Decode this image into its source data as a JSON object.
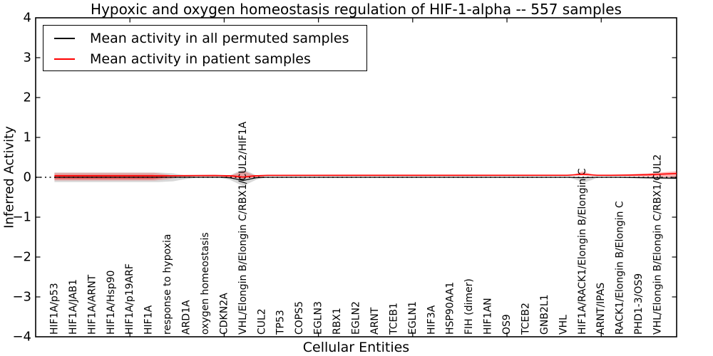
{
  "chart_data": {
    "type": "line",
    "title": "Hypoxic and oxygen homeostasis regulation of HIF-1-alpha -- 557 samples",
    "xlabel": "Cellular Entities",
    "ylabel": "Inferred Activity",
    "ylim": [
      -4,
      4
    ],
    "y_ticks": [
      4,
      3,
      2,
      1,
      0,
      -1,
      -2,
      -3,
      -4
    ],
    "x_tick_positions": [
      5,
      10,
      15,
      20,
      25,
      30
    ],
    "grid": false,
    "zero_line": {
      "style": "dotted",
      "color": "#000000"
    },
    "frame_color": "#000000",
    "background": "#ffffff",
    "categories": [
      "HIF1A/p53",
      "HIF1A/JAB1",
      "HIF1A/ARNT",
      "HIF1A/Hsp90",
      "HIF1A/p19ARF",
      "HIF1A",
      "response to hypoxia",
      "ARD1A",
      "oxygen homeostasis",
      "CDKN2A",
      "VHL/Elongin B/Elongin C/RBX1/CUL2/HIF1A",
      "CUL2",
      "TP53",
      "COPS5",
      "EGLN3",
      "RBX1",
      "EGLN2",
      "ARNT",
      "TCEB1",
      "EGLN1",
      "HIF3A",
      "HSP90AA1",
      "FIH (dimer)",
      "HIF1AN",
      "OS9",
      "TCEB2",
      "GNB2L1",
      "VHL",
      "HIF1A/RACK1/Elongin B/Elongin C",
      "ARNT/IPAS",
      "RACK1/Elongin B/Elongin C",
      "PHD1-3/OS9",
      "VHL/Elongin B/Elongin C/RBX1/CUL2"
    ],
    "legend": {
      "position": "upper left",
      "entries": [
        {
          "label": "Mean activity in all permuted samples",
          "color": "#000000"
        },
        {
          "label": "Mean activity in patient samples",
          "color": "#ff0000"
        }
      ]
    },
    "series": [
      {
        "name": "Mean activity in all permuted samples",
        "color": "#000000",
        "width": 1.3,
        "x": [
          1,
          9.8,
          10.3,
          11,
          11.7,
          12.2,
          28.3,
          29,
          29.7,
          31,
          33,
          34
        ],
        "values": [
          0,
          0,
          -0.01,
          -0.08,
          -0.01,
          0,
          0,
          -0.01,
          0,
          0,
          -0.015,
          -0.025
        ]
      },
      {
        "name": "Mean activity in patient samples",
        "color": "#ff0000",
        "width": 1.7,
        "x": [
          1,
          7.5,
          9.5,
          10.4,
          11,
          11.6,
          12.3,
          28.2,
          29,
          29.8,
          30.5,
          31.5,
          32.5,
          33,
          34
        ],
        "values": [
          0.04,
          0.04,
          0.045,
          0.035,
          0.005,
          0.035,
          0.048,
          0.05,
          0.075,
          0.05,
          0.05,
          0.055,
          0.065,
          0.075,
          0.095
        ]
      }
    ],
    "bands": [
      {
        "name": "left-permuted-envelope",
        "color": "#999999",
        "opacity": 0.38,
        "x": [
          1,
          6.5,
          7.3,
          8.0,
          8.6
        ],
        "lo": [
          -0.12,
          -0.12,
          -0.1,
          -0.04,
          -0.005
        ],
        "hi": [
          0.12,
          0.12,
          0.1,
          0.04,
          0.005
        ]
      },
      {
        "name": "left-patient-envelope-outer",
        "color": "#ff0000",
        "opacity": 0.22,
        "x": [
          1,
          6.3,
          7.0,
          7.6
        ],
        "lo": [
          -0.08,
          -0.08,
          -0.05,
          -0.005
        ],
        "hi": [
          0.11,
          0.11,
          0.07,
          0.01
        ]
      },
      {
        "name": "left-patient-envelope-inner",
        "color": "#ff0000",
        "opacity": 0.38,
        "x": [
          1,
          6.2,
          7.0
        ],
        "lo": [
          -0.05,
          -0.05,
          -0.005
        ],
        "hi": [
          0.06,
          0.06,
          0.01
        ]
      },
      {
        "name": "violin-gray-vhl-complex",
        "color": "#999999",
        "opacity": 0.38,
        "x": [
          9.7,
          10.3,
          11,
          11.7,
          12.2
        ],
        "lo": [
          0,
          -0.06,
          -0.22,
          -0.06,
          0
        ],
        "hi": [
          0,
          0.05,
          0.2,
          0.05,
          0
        ]
      },
      {
        "name": "violin-red-vhl-complex",
        "color": "#ff0000",
        "opacity": 0.25,
        "x": [
          9.9,
          10.4,
          11,
          11.6,
          12.1
        ],
        "lo": [
          0.005,
          -0.01,
          -0.03,
          -0.01,
          0.005
        ],
        "hi": [
          0.02,
          0.05,
          0.16,
          0.05,
          0.02
        ]
      },
      {
        "name": "bump-red-rack1-complex",
        "color": "#ff0000",
        "opacity": 0.3,
        "x": [
          28.2,
          28.6,
          29,
          29.5,
          29.9
        ],
        "lo": [
          0.04,
          0.045,
          0.05,
          0.045,
          0.04
        ],
        "hi": [
          0.045,
          0.08,
          0.145,
          0.08,
          0.045
        ]
      },
      {
        "name": "bump-gray-rack1-complex",
        "color": "#999999",
        "opacity": 0.38,
        "x": [
          28.3,
          28.7,
          29.1,
          29.5,
          29.8
        ],
        "lo": [
          -0.005,
          -0.07,
          -0.125,
          -0.07,
          -0.005
        ],
        "hi": [
          0.005,
          0.01,
          0.02,
          0.01,
          0.005
        ]
      },
      {
        "name": "right-red-wedge",
        "color": "#ff0000",
        "opacity": 0.3,
        "x": [
          30.3,
          31,
          31.8,
          32.6,
          33.4,
          34
        ],
        "lo": [
          0.03,
          0.035,
          0.03,
          0.02,
          0.01,
          0.0
        ],
        "hi": [
          0.05,
          0.06,
          0.08,
          0.1,
          0.13,
          0.15
        ]
      },
      {
        "name": "right-gray-wedge",
        "color": "#999999",
        "opacity": 0.3,
        "x": [
          30.8,
          32,
          33,
          34
        ],
        "lo": [
          -0.01,
          -0.03,
          -0.045,
          -0.055
        ],
        "hi": [
          0.0,
          0.01,
          0.02,
          0.02
        ]
      }
    ]
  }
}
